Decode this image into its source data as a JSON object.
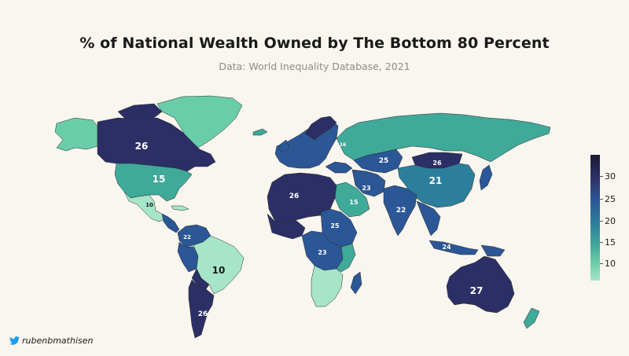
{
  "title": "% of National Wealth Owned by The Bottom 80 Percent",
  "subtitle": "Data: World Inequality Database, 2021",
  "credit": "rubenbmathisen",
  "credit_icon": "twitter-bird-icon",
  "legend": {
    "ticks": [
      "30",
      "25",
      "20",
      "15",
      "10"
    ],
    "values": [
      30,
      25,
      20,
      15,
      10
    ],
    "min": 8,
    "max": 32
  },
  "colors": {
    "background": "#f9f6ef",
    "scale": [
      "#a6e5c9",
      "#69cda9",
      "#3fa99a",
      "#2c7f9c",
      "#2b5796",
      "#2c2f66",
      "#1d1a33"
    ]
  },
  "regions": [
    {
      "id": "canada",
      "value": 26,
      "label": "26"
    },
    {
      "id": "greenland",
      "value": 14,
      "label": ""
    },
    {
      "id": "usa",
      "value": 15,
      "label": "15"
    },
    {
      "id": "mexico",
      "value": 10,
      "label": "10"
    },
    {
      "id": "colombia",
      "value": 22,
      "label": "22"
    },
    {
      "id": "brazil",
      "value": 10,
      "label": "10"
    },
    {
      "id": "argentina",
      "value": 26,
      "label": "26"
    },
    {
      "id": "russia",
      "value": 16,
      "label": "16"
    },
    {
      "id": "kazakhstan",
      "value": 25,
      "label": "25"
    },
    {
      "id": "mongolia",
      "value": 26,
      "label": "26"
    },
    {
      "id": "china",
      "value": 21,
      "label": "21"
    },
    {
      "id": "india",
      "value": 22,
      "label": "22"
    },
    {
      "id": "saudi-arabia",
      "value": 15,
      "label": "15"
    },
    {
      "id": "iran",
      "value": 23,
      "label": "23"
    },
    {
      "id": "north-africa",
      "value": 26,
      "label": "26"
    },
    {
      "id": "sudan",
      "value": 25,
      "label": "25"
    },
    {
      "id": "congo",
      "value": 23,
      "label": "23"
    },
    {
      "id": "indonesia",
      "value": 24,
      "label": "24"
    },
    {
      "id": "australia",
      "value": 27,
      "label": "27"
    }
  ]
}
